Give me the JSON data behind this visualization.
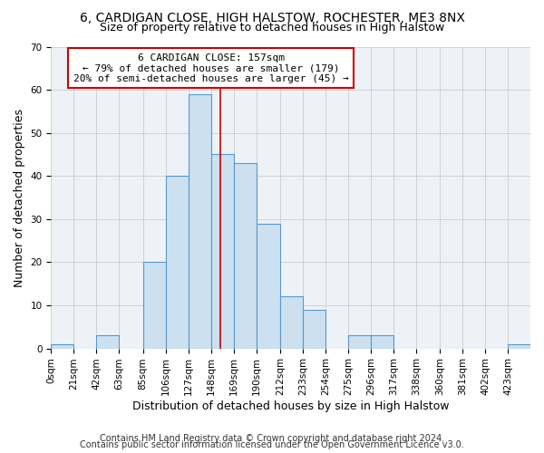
{
  "title_line1": "6, CARDIGAN CLOSE, HIGH HALSTOW, ROCHESTER, ME3 8NX",
  "title_line2": "Size of property relative to detached houses in High Halstow",
  "xlabel": "Distribution of detached houses by size in High Halstow",
  "ylabel": "Number of detached properties",
  "footnote1": "Contains HM Land Registry data © Crown copyright and database right 2024.",
  "footnote2": "Contains public sector information licensed under the Open Government Licence v3.0.",
  "bin_labels": [
    "0sqm",
    "21sqm",
    "42sqm",
    "63sqm",
    "85sqm",
    "106sqm",
    "127sqm",
    "148sqm",
    "169sqm",
    "190sqm",
    "212sqm",
    "233sqm",
    "254sqm",
    "275sqm",
    "296sqm",
    "317sqm",
    "338sqm",
    "360sqm",
    "381sqm",
    "402sqm",
    "423sqm"
  ],
  "bar_values": [
    1,
    0,
    3,
    0,
    20,
    40,
    59,
    45,
    43,
    29,
    12,
    9,
    0,
    3,
    3,
    0,
    0,
    0,
    0,
    0,
    1
  ],
  "bin_edges": [
    0,
    21,
    42,
    63,
    85,
    106,
    127,
    148,
    169,
    190,
    212,
    233,
    254,
    275,
    296,
    317,
    338,
    360,
    381,
    402,
    423,
    444
  ],
  "bar_facecolor": "#cce0f0",
  "bar_edgecolor": "#5599cc",
  "vline_x": 157,
  "vline_color": "#cc0000",
  "annotation_text": "6 CARDIGAN CLOSE: 157sqm\n← 79% of detached houses are smaller (179)\n20% of semi-detached houses are larger (45) →",
  "annotation_box_edgecolor": "#cc0000",
  "annotation_box_facecolor": "#ffffff",
  "ylim": [
    0,
    70
  ],
  "yticks": [
    0,
    10,
    20,
    30,
    40,
    50,
    60,
    70
  ],
  "grid_color": "#cccccc",
  "background_color": "#eef2f7",
  "title_fontsize": 10,
  "subtitle_fontsize": 9,
  "axis_label_fontsize": 9,
  "tick_fontsize": 7.5,
  "annotation_fontsize": 8,
  "footnote_fontsize": 7
}
